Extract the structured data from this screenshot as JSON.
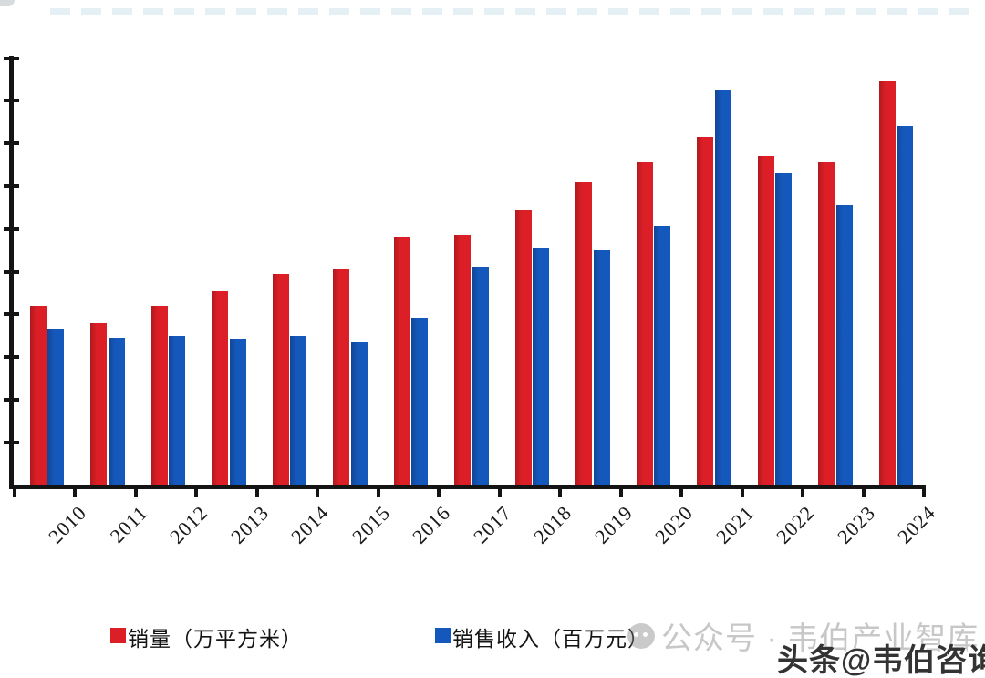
{
  "colors": {
    "sales_red": "#DC1F26",
    "revenue_blue": "#1558BC",
    "axis": "#141414",
    "background": "#ffffff"
  },
  "chart_data": {
    "type": "bar",
    "title": "",
    "xlabel": "",
    "ylabel": "",
    "categories": [
      "2010",
      "2011",
      "2012",
      "2013",
      "2014",
      "2015",
      "2016",
      "2017",
      "2018",
      "2019",
      "2020",
      "2021",
      "2022",
      "2023",
      "2024"
    ],
    "series": [
      {
        "name": "销量（万平方米）",
        "color": "#DC1F26",
        "values": [
          4.2,
          3.8,
          4.2,
          4.55,
          4.95,
          5.05,
          5.8,
          5.85,
          6.45,
          7.1,
          7.55,
          8.15,
          7.7,
          7.55,
          9.45
        ]
      },
      {
        "name": "销售收入（百万元）",
        "color": "#1558BC",
        "values": [
          3.65,
          3.45,
          3.5,
          3.4,
          3.5,
          3.35,
          3.9,
          5.1,
          5.55,
          5.5,
          6.05,
          9.25,
          7.3,
          6.55,
          8.4
        ]
      }
    ],
    "ylim": [
      0,
      10
    ],
    "y_tick_interval": 1,
    "y_axis_labels_visible": false,
    "value_unit_note": "y-axis ticks are unlabeled; values estimated in tick units (10 intervals full scale)",
    "grid": false,
    "legend_position": "bottom"
  },
  "legend": {
    "items": [
      {
        "label": "销量（万平方米）",
        "color": "#DC1F26"
      },
      {
        "label": "销售收入（百万元）",
        "color": "#1558BC"
      }
    ]
  },
  "watermarks": {
    "ghost_text": "公众号 · 韦伯产业智库",
    "dark_text": "头条@韦伯咨询"
  }
}
